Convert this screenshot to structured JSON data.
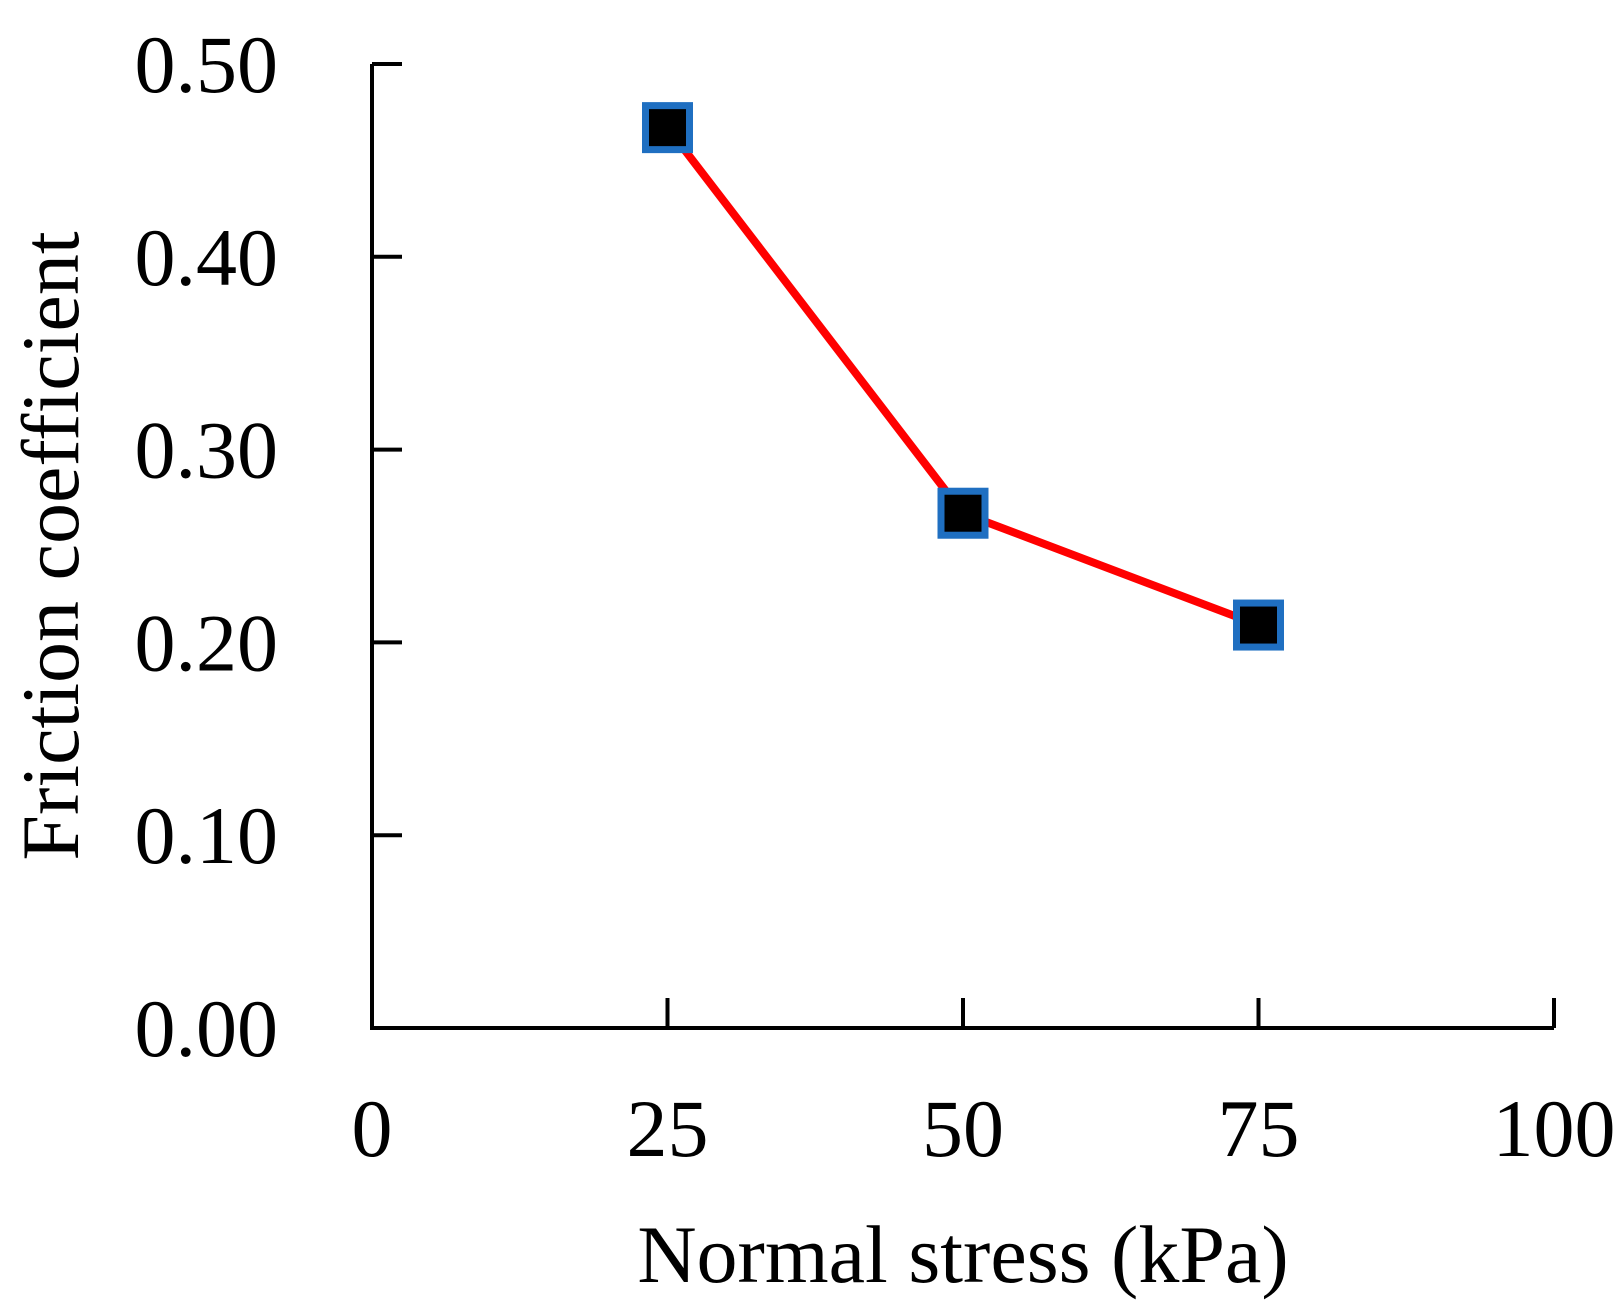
{
  "chart_data": {
    "type": "line",
    "title": "",
    "xlabel": "Normal stress (kPa)",
    "ylabel": "Friction coefficient",
    "xlim": [
      0,
      100
    ],
    "ylim": [
      0,
      0.5
    ],
    "x_ticks": [
      0,
      25,
      50,
      75,
      100
    ],
    "x_tick_labels": [
      "0",
      "25",
      "50",
      "75",
      "100"
    ],
    "y_ticks": [
      0,
      0.1,
      0.2,
      0.3,
      0.4,
      0.5
    ],
    "y_tick_labels": [
      "0.00",
      "0.10",
      "0.20",
      "0.30",
      "0.40",
      "0.50"
    ],
    "grid": false,
    "series": [
      {
        "name": "Friction coefficient",
        "x": [
          25,
          50,
          75
        ],
        "values": [
          0.467,
          0.267,
          0.209
        ],
        "line_color": "#ff0000",
        "marker": "square",
        "marker_fill": "#000000",
        "marker_edge": "#1f6fc1"
      }
    ]
  }
}
